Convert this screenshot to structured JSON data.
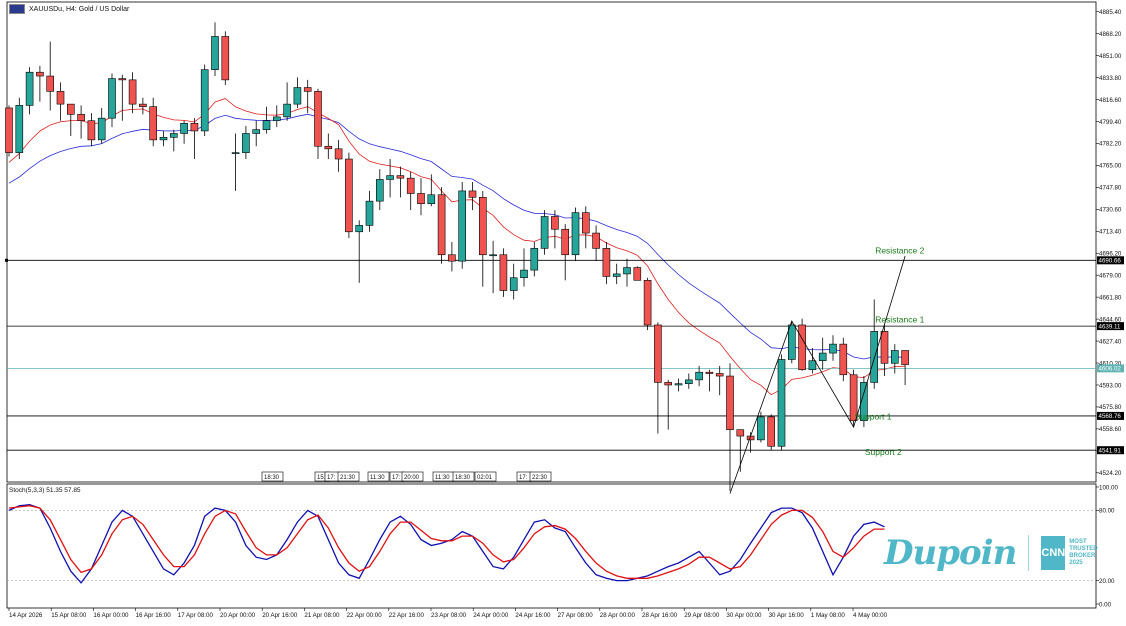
{
  "header": {
    "symbol_title": "XAUUSDu, H4:  Gold / US Dollar"
  },
  "stoch": {
    "label": "Stoch(5,3,3) 51.35 57.85"
  },
  "branding": {
    "logo": "Dupoin",
    "award_badge": "CNN",
    "award_text": [
      "MOST",
      "TRUSTED",
      "BROKER",
      "2025"
    ]
  },
  "chart_data": {
    "type": "candlestick",
    "price_axis": {
      "ticks": [
        "4885.40",
        "4868.20",
        "4851.00",
        "4833.80",
        "4816.60",
        "4799.40",
        "4782.20",
        "4765.00",
        "4747.80",
        "4730.60",
        "4713.40",
        "4696.20",
        "4679.00",
        "4661.80",
        "4644.60",
        "4627.40",
        "4610.20",
        "4593.00",
        "4575.80",
        "4558.60",
        "4541.40",
        "4524.20"
      ],
      "range": [
        4517,
        4893
      ]
    },
    "stoch_axis": {
      "ticks": [
        "100.00",
        "80.00",
        "20.00",
        "0.00"
      ],
      "levels": [
        80,
        20
      ]
    },
    "time_labels": [
      "14 Apr 2026",
      "15 Apr 08:00",
      "16 Apr 00:00",
      "16 Apr 16:00",
      "17 Apr 08:00",
      "20 Apr 00:00",
      "20 Apr 16:00",
      "21 Apr 08:00",
      "22 Apr 00:00",
      "22 Apr 16:00",
      "23 Apr 08:00",
      "24 Apr 00:00",
      "24 Apr 16:00",
      "27 Apr 08:00",
      "28 Apr 00:00",
      "28 Apr 16:00",
      "29 Apr 08:00",
      "30 Apr 00:00",
      "30 Apr 16:00",
      "1 May 08:00",
      "4 May 00:00"
    ],
    "session_markers": [
      "18:30",
      "15:",
      "17:",
      "21:30",
      "11:30",
      "17:",
      "20:00",
      "11:30",
      "18:30",
      "02:01",
      "17:",
      "22:30"
    ],
    "candles": [
      [
        4810,
        4775,
        4812,
        4772
      ],
      [
        4775,
        4812,
        4818,
        4770
      ],
      [
        4812,
        4838,
        4842,
        4805
      ],
      [
        4838,
        4835,
        4843,
        4815
      ],
      [
        4835,
        4823,
        4862,
        4808
      ],
      [
        4823,
        4813,
        4830,
        4800
      ],
      [
        4813,
        4805,
        4812,
        4788
      ],
      [
        4805,
        4800,
        4812,
        4786
      ],
      [
        4800,
        4785,
        4806,
        4780
      ],
      [
        4785,
        4802,
        4810,
        4782
      ],
      [
        4802,
        4833,
        4837,
        4795
      ],
      [
        4833,
        4832,
        4836,
        4800
      ],
      [
        4832,
        4813,
        4838,
        4806
      ],
      [
        4813,
        4811,
        4818,
        4805
      ],
      [
        4811,
        4785,
        4818,
        4780
      ],
      [
        4785,
        4787,
        4792,
        4780
      ],
      [
        4787,
        4790,
        4793,
        4776
      ],
      [
        4790,
        4798,
        4800,
        4782
      ],
      [
        4798,
        4792,
        4802,
        4770
      ],
      [
        4792,
        4840,
        4844,
        4788
      ],
      [
        4840,
        4866,
        4877,
        4835
      ],
      [
        4866,
        4832,
        4870,
        4828
      ],
      [
        4775,
        4775,
        4790,
        4745
      ],
      [
        4775,
        4790,
        4796,
        4770
      ],
      [
        4790,
        4793,
        4800,
        4780
      ],
      [
        4793,
        4800,
        4811,
        4790
      ],
      [
        4800,
        4803,
        4812,
        4795
      ],
      [
        4803,
        4813,
        4830,
        4800
      ],
      [
        4813,
        4826,
        4834,
        4810
      ],
      [
        4826,
        4823,
        4832,
        4806
      ],
      [
        4823,
        4780,
        4825,
        4770
      ],
      [
        4780,
        4778,
        4790,
        4770
      ],
      [
        4778,
        4770,
        4785,
        4760
      ],
      [
        4770,
        4713,
        4775,
        4708
      ],
      [
        4713,
        4718,
        4722,
        4673
      ],
      [
        4718,
        4737,
        4745,
        4713
      ],
      [
        4737,
        4754,
        4762,
        4730
      ],
      [
        4754,
        4757,
        4770,
        4740
      ],
      [
        4757,
        4755,
        4764,
        4740
      ],
      [
        4755,
        4743,
        4760,
        4730
      ],
      [
        4743,
        4735,
        4755,
        4726
      ],
      [
        4735,
        4742,
        4758,
        4733
      ],
      [
        4742,
        4695,
        4748,
        4688
      ],
      [
        4695,
        4690,
        4705,
        4682
      ],
      [
        4690,
        4745,
        4752,
        4684
      ],
      [
        4745,
        4740,
        4752,
        4730
      ],
      [
        4740,
        4695,
        4745,
        4670
      ],
      [
        4695,
        4695,
        4706,
        4665
      ],
      [
        4695,
        4667,
        4700,
        4662
      ],
      [
        4667,
        4677,
        4688,
        4660
      ],
      [
        4677,
        4683,
        4700,
        4670
      ],
      [
        4683,
        4700,
        4705,
        4678
      ],
      [
        4700,
        4725,
        4730,
        4695
      ],
      [
        4725,
        4715,
        4730,
        4700
      ],
      [
        4715,
        4695,
        4719,
        4675
      ],
      [
        4695,
        4728,
        4732,
        4690
      ],
      [
        4728,
        4712,
        4733,
        4700
      ],
      [
        4712,
        4700,
        4718,
        4690
      ],
      [
        4700,
        4678,
        4705,
        4672
      ],
      [
        4678,
        4680,
        4688,
        4672
      ],
      [
        4680,
        4685,
        4692,
        4670
      ],
      [
        4685,
        4675,
        4686,
        4675
      ],
      [
        4675,
        4640,
        4677,
        4636
      ],
      [
        4640,
        4595,
        4642,
        4555
      ],
      [
        4595,
        4593,
        4597,
        4558
      ],
      [
        4593,
        4594,
        4598,
        4588
      ],
      [
        4594,
        4597,
        4602,
        4590
      ],
      [
        4597,
        4603,
        4608,
        4592
      ],
      [
        4603,
        4602,
        4605,
        4588
      ],
      [
        4602,
        4600,
        4608,
        4585
      ],
      [
        4600,
        4558,
        4610,
        4510
      ],
      [
        4558,
        4553,
        4555,
        4525
      ],
      [
        4553,
        4550,
        4556,
        4540
      ],
      [
        4550,
        4568,
        4572,
        4548
      ],
      [
        4568,
        4545,
        4570,
        4542
      ],
      [
        4545,
        4613,
        4617,
        4542
      ],
      [
        4613,
        4640,
        4643,
        4610
      ],
      [
        4640,
        4605,
        4645,
        4604
      ],
      [
        4605,
        4612,
        4622,
        4602
      ],
      [
        4612,
        4618,
        4630,
        4605
      ],
      [
        4618,
        4625,
        4632,
        4612
      ],
      [
        4625,
        4601,
        4630,
        4596
      ],
      [
        4601,
        4565,
        4605,
        4560
      ],
      [
        4565,
        4595,
        4600,
        4560
      ],
      [
        4595,
        4635,
        4660,
        4590
      ],
      [
        4635,
        4610,
        4640,
        4600
      ],
      [
        4610,
        4620,
        4625,
        4602
      ],
      [
        4620,
        4609,
        4617,
        4593
      ]
    ],
    "ema_red_start": 4766,
    "ema_blue_start": 4749,
    "horizontal_lines": [
      {
        "price": 4690.66,
        "label": "4690.66",
        "color": "#000000"
      },
      {
        "price": 4639.11,
        "label": "4639.11",
        "color": "#000000"
      },
      {
        "price": 4606.02,
        "label": "4606.02",
        "color": "#5fb3b3"
      },
      {
        "price": 4568.76,
        "label": "4568.76",
        "color": "#000000"
      },
      {
        "price": 4541.91,
        "label": "4541.91",
        "color": "#000000"
      }
    ],
    "annotations": [
      {
        "text": "Resistance 2",
        "price": 4696,
        "bar": 84
      },
      {
        "text": "Resistance 1",
        "price": 4642,
        "bar": 84
      },
      {
        "text": "Support 1",
        "price": 4566,
        "bar": 82
      },
      {
        "text": "Support 2",
        "price": 4538,
        "bar": 83
      }
    ],
    "zigzag": [
      [
        70,
        4508
      ],
      [
        76,
        4643
      ],
      [
        82,
        4560
      ],
      [
        87,
        4694
      ]
    ],
    "stoch_k": [
      80,
      84,
      85,
      82,
      65,
      45,
      28,
      18,
      30,
      50,
      70,
      80,
      75,
      60,
      45,
      30,
      25,
      35,
      50,
      75,
      82,
      80,
      70,
      50,
      40,
      38,
      42,
      55,
      70,
      80,
      75,
      55,
      35,
      25,
      22,
      38,
      55,
      70,
      75,
      68,
      55,
      50,
      52,
      55,
      62,
      58,
      45,
      32,
      30,
      40,
      55,
      70,
      72,
      65,
      62,
      48,
      35,
      25,
      22,
      20,
      20,
      22,
      24,
      28,
      32,
      35,
      40,
      45,
      35,
      25,
      28,
      38,
      52,
      65,
      78,
      82,
      82,
      78,
      65,
      45,
      25,
      40,
      58,
      68,
      70,
      66
    ],
    "stoch_d": [
      82,
      83,
      84,
      82,
      72,
      55,
      38,
      27,
      30,
      42,
      60,
      72,
      75,
      68,
      55,
      42,
      32,
      32,
      42,
      60,
      75,
      80,
      77,
      62,
      48,
      42,
      42,
      48,
      60,
      72,
      76,
      65,
      48,
      35,
      28,
      32,
      45,
      60,
      70,
      70,
      63,
      56,
      54,
      54,
      58,
      58,
      52,
      42,
      36,
      38,
      48,
      60,
      66,
      67,
      64,
      56,
      45,
      35,
      28,
      24,
      22,
      22,
      22,
      24,
      27,
      30,
      34,
      40,
      40,
      35,
      30,
      32,
      42,
      55,
      68,
      76,
      80,
      80,
      74,
      62,
      45,
      40,
      48,
      58,
      64,
      64
    ]
  }
}
